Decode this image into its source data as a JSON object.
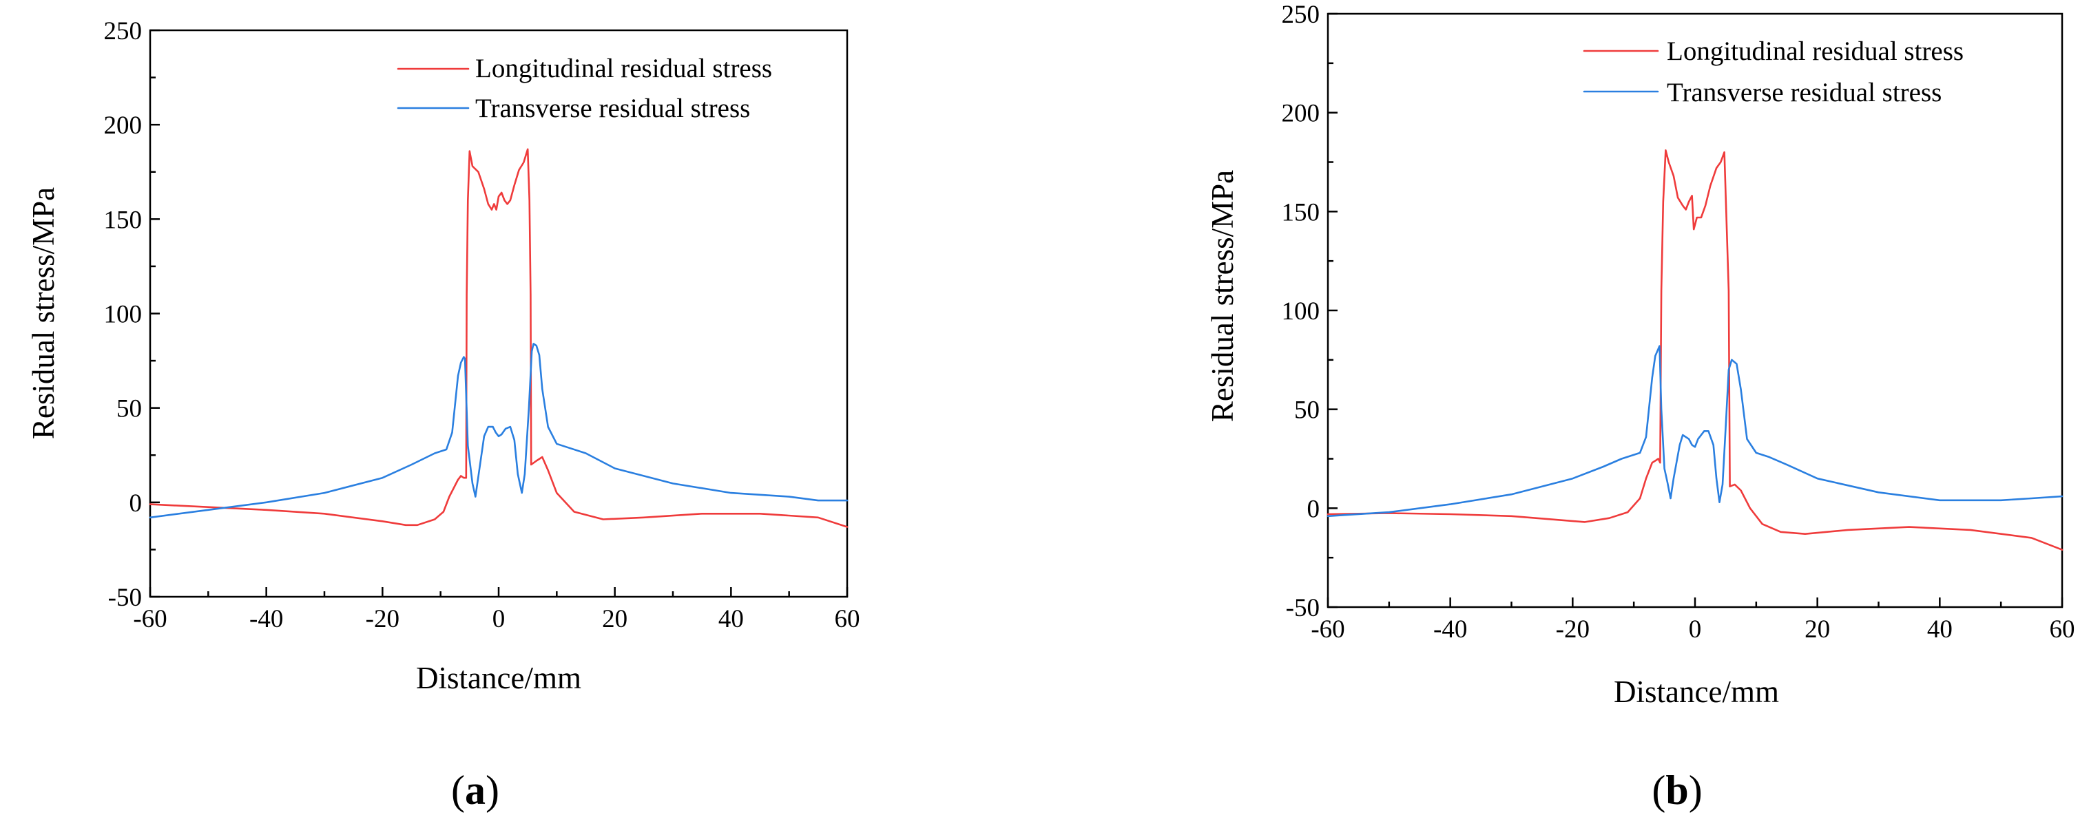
{
  "figure": {
    "panel_labels": [
      "a",
      "b"
    ]
  },
  "colors": {
    "longitudinal": "#ef3b3b",
    "transverse": "#2a7fe0",
    "axis": "#000000"
  },
  "chart_data": [
    {
      "panel": "a",
      "type": "line",
      "title": "",
      "xlabel": "Distance/mm",
      "ylabel": "Residual stress/MPa",
      "xlim": [
        -60,
        60
      ],
      "ylim": [
        -50,
        250
      ],
      "xticks": [
        -60,
        -40,
        -20,
        0,
        20,
        40,
        60
      ],
      "yticks": [
        -50,
        0,
        50,
        100,
        150,
        200,
        250
      ],
      "legend_position": "top-right",
      "series": [
        {
          "name": "Longitudinal residual stress",
          "color": "#ef3b3b",
          "points": [
            [
              -60,
              -1
            ],
            [
              -50,
              -2.5
            ],
            [
              -40,
              -4
            ],
            [
              -30,
              -6
            ],
            [
              -20,
              -10
            ],
            [
              -16,
              -12
            ],
            [
              -14,
              -12
            ],
            [
              -11,
              -9
            ],
            [
              -9.5,
              -5
            ],
            [
              -8.5,
              3
            ],
            [
              -7,
              12
            ],
            [
              -6.5,
              14
            ],
            [
              -6,
              13
            ],
            [
              -5.6,
              13
            ],
            [
              -5.5,
              110
            ],
            [
              -5.3,
              160
            ],
            [
              -5,
              186
            ],
            [
              -4.5,
              178
            ],
            [
              -3.5,
              175
            ],
            [
              -2.5,
              166
            ],
            [
              -1.8,
              158
            ],
            [
              -1.2,
              155
            ],
            [
              -0.8,
              158
            ],
            [
              -0.4,
              155
            ],
            [
              0,
              162
            ],
            [
              0.5,
              164
            ],
            [
              1,
              160
            ],
            [
              1.5,
              158
            ],
            [
              2,
              160
            ],
            [
              2.7,
              168
            ],
            [
              3.5,
              176
            ],
            [
              4.3,
              180
            ],
            [
              5,
              187
            ],
            [
              5.3,
              160
            ],
            [
              5.5,
              110
            ],
            [
              5.6,
              20
            ],
            [
              6.5,
              22
            ],
            [
              7.5,
              24
            ],
            [
              8.5,
              17
            ],
            [
              10,
              5
            ],
            [
              13,
              -5
            ],
            [
              18,
              -9
            ],
            [
              25,
              -8
            ],
            [
              35,
              -6
            ],
            [
              45,
              -6
            ],
            [
              55,
              -8
            ],
            [
              60,
              -13
            ]
          ]
        },
        {
          "name": "Transverse residual stress",
          "color": "#2a7fe0",
          "points": [
            [
              -60,
              -8
            ],
            [
              -50,
              -4
            ],
            [
              -40,
              0
            ],
            [
              -30,
              5
            ],
            [
              -20,
              13
            ],
            [
              -15,
              20
            ],
            [
              -11,
              26
            ],
            [
              -9,
              28
            ],
            [
              -8,
              37
            ],
            [
              -7,
              67
            ],
            [
              -6.5,
              74
            ],
            [
              -6,
              77
            ],
            [
              -5.8,
              76
            ],
            [
              -5.3,
              30
            ],
            [
              -4.5,
              10
            ],
            [
              -4,
              3
            ],
            [
              -3.3,
              18
            ],
            [
              -2.5,
              35
            ],
            [
              -1.8,
              40
            ],
            [
              -1,
              40
            ],
            [
              -0.5,
              37
            ],
            [
              0,
              35
            ],
            [
              0.5,
              36
            ],
            [
              1.2,
              39
            ],
            [
              2,
              40
            ],
            [
              2.7,
              33
            ],
            [
              3.3,
              15
            ],
            [
              4,
              5
            ],
            [
              4.5,
              15
            ],
            [
              5.2,
              50
            ],
            [
              5.7,
              80
            ],
            [
              6,
              84
            ],
            [
              6.5,
              83
            ],
            [
              7,
              78
            ],
            [
              7.5,
              60
            ],
            [
              8.5,
              40
            ],
            [
              10,
              31
            ],
            [
              12,
              29
            ],
            [
              15,
              26
            ],
            [
              20,
              18
            ],
            [
              30,
              10
            ],
            [
              40,
              5
            ],
            [
              50,
              3
            ],
            [
              55,
              1
            ],
            [
              60,
              1
            ]
          ]
        }
      ]
    },
    {
      "panel": "b",
      "type": "line",
      "title": "",
      "xlabel": "Distance/mm",
      "ylabel": "Residual stress/MPa",
      "xlim": [
        -60,
        60
      ],
      "ylim": [
        -50,
        250
      ],
      "xticks": [
        -60,
        -40,
        -20,
        0,
        20,
        40,
        60
      ],
      "yticks": [
        -50,
        0,
        50,
        100,
        150,
        200,
        250
      ],
      "legend_position": "top-right",
      "series": [
        {
          "name": "Longitudinal residual stress",
          "color": "#ef3b3b",
          "points": [
            [
              -60,
              -3
            ],
            [
              -50,
              -2.5
            ],
            [
              -40,
              -3
            ],
            [
              -30,
              -4
            ],
            [
              -22,
              -6
            ],
            [
              -18,
              -7
            ],
            [
              -14,
              -5
            ],
            [
              -11,
              -2
            ],
            [
              -9,
              5
            ],
            [
              -8,
              15
            ],
            [
              -7,
              23
            ],
            [
              -6.5,
              24
            ],
            [
              -6,
              25
            ],
            [
              -5.7,
              23
            ],
            [
              -5.5,
              110
            ],
            [
              -5.2,
              155
            ],
            [
              -4.8,
              181
            ],
            [
              -4.3,
              175
            ],
            [
              -3.5,
              168
            ],
            [
              -2.8,
              157
            ],
            [
              -2,
              153
            ],
            [
              -1.5,
              151
            ],
            [
              -1,
              155
            ],
            [
              -0.5,
              158
            ],
            [
              -0.2,
              141
            ],
            [
              0.3,
              147
            ],
            [
              1,
              147
            ],
            [
              1.7,
              153
            ],
            [
              2.5,
              163
            ],
            [
              3.5,
              172
            ],
            [
              4.2,
              175
            ],
            [
              4.8,
              180
            ],
            [
              5.2,
              140
            ],
            [
              5.5,
              110
            ],
            [
              5.7,
              11
            ],
            [
              6.5,
              12
            ],
            [
              7.5,
              9
            ],
            [
              9,
              0
            ],
            [
              11,
              -8
            ],
            [
              14,
              -12
            ],
            [
              18,
              -13
            ],
            [
              25,
              -11
            ],
            [
              35,
              -9.5
            ],
            [
              45,
              -11
            ],
            [
              55,
              -15
            ],
            [
              60,
              -21
            ]
          ]
        },
        {
          "name": "Transverse residual stress",
          "color": "#2a7fe0",
          "points": [
            [
              -60,
              -4
            ],
            [
              -50,
              -2
            ],
            [
              -40,
              2
            ],
            [
              -30,
              7
            ],
            [
              -20,
              15
            ],
            [
              -15,
              21
            ],
            [
              -12,
              25
            ],
            [
              -9,
              28
            ],
            [
              -8,
              36
            ],
            [
              -7,
              66
            ],
            [
              -6.5,
              77
            ],
            [
              -5.8,
              82
            ],
            [
              -5.5,
              50
            ],
            [
              -5,
              20
            ],
            [
              -4.5,
              13
            ],
            [
              -4,
              5
            ],
            [
              -3.5,
              15
            ],
            [
              -2.5,
              32
            ],
            [
              -2,
              37
            ],
            [
              -1,
              35
            ],
            [
              -0.5,
              32
            ],
            [
              0,
              31
            ],
            [
              0.5,
              35
            ],
            [
              1,
              37
            ],
            [
              1.5,
              39
            ],
            [
              2.2,
              39
            ],
            [
              3,
              32
            ],
            [
              3.5,
              15
            ],
            [
              4,
              3
            ],
            [
              4.5,
              12
            ],
            [
              5,
              40
            ],
            [
              5.5,
              70
            ],
            [
              6,
              75
            ],
            [
              6.8,
              73
            ],
            [
              7.5,
              60
            ],
            [
              8.5,
              35
            ],
            [
              10,
              28
            ],
            [
              12,
              26
            ],
            [
              15,
              22
            ],
            [
              20,
              15
            ],
            [
              30,
              8
            ],
            [
              40,
              4
            ],
            [
              50,
              4
            ],
            [
              55,
              5
            ],
            [
              60,
              6
            ]
          ]
        }
      ]
    }
  ]
}
